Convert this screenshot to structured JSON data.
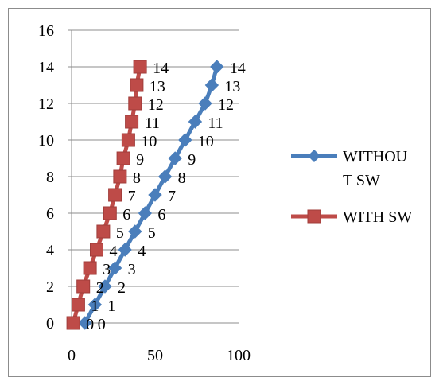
{
  "chart_data": {
    "type": "line",
    "title": "",
    "xlabel": "",
    "ylabel": "",
    "xlim": [
      0,
      100
    ],
    "ylim": [
      0,
      16
    ],
    "x_ticks": [
      "0",
      "50",
      "100"
    ],
    "y_ticks": [
      "0",
      "2",
      "4",
      "6",
      "8",
      "10",
      "12",
      "14",
      "16"
    ],
    "grid": "horizontal",
    "legend_position": "right",
    "series": [
      {
        "name": "WITHOU\nT SW",
        "color": "#4a7ebb",
        "marker": "diamond",
        "x": [
          8,
          14,
          20,
          26,
          32,
          38,
          44,
          50,
          56,
          62,
          68,
          74,
          80,
          84,
          87
        ],
        "y": [
          0,
          1,
          2,
          3,
          4,
          5,
          6,
          7,
          8,
          9,
          10,
          11,
          12,
          13,
          14
        ],
        "labels": [
          "0",
          "1",
          "2",
          "3",
          "4",
          "5",
          "6",
          "7",
          "8",
          "9",
          "10",
          "11",
          "12",
          "13",
          "14"
        ]
      },
      {
        "name": "WITH SW",
        "color": "#be4b48",
        "marker": "square",
        "x": [
          1,
          4,
          7,
          11,
          15,
          19,
          23,
          26,
          29,
          31,
          34,
          36,
          38,
          39,
          41
        ],
        "y": [
          0,
          1,
          2,
          3,
          4,
          5,
          6,
          7,
          8,
          9,
          10,
          11,
          12,
          13,
          14
        ],
        "labels": [
          "0",
          "1",
          "2",
          "3",
          "4",
          "5",
          "6",
          "7",
          "8",
          "9",
          "10",
          "11",
          "12",
          "13",
          "14"
        ]
      }
    ]
  }
}
